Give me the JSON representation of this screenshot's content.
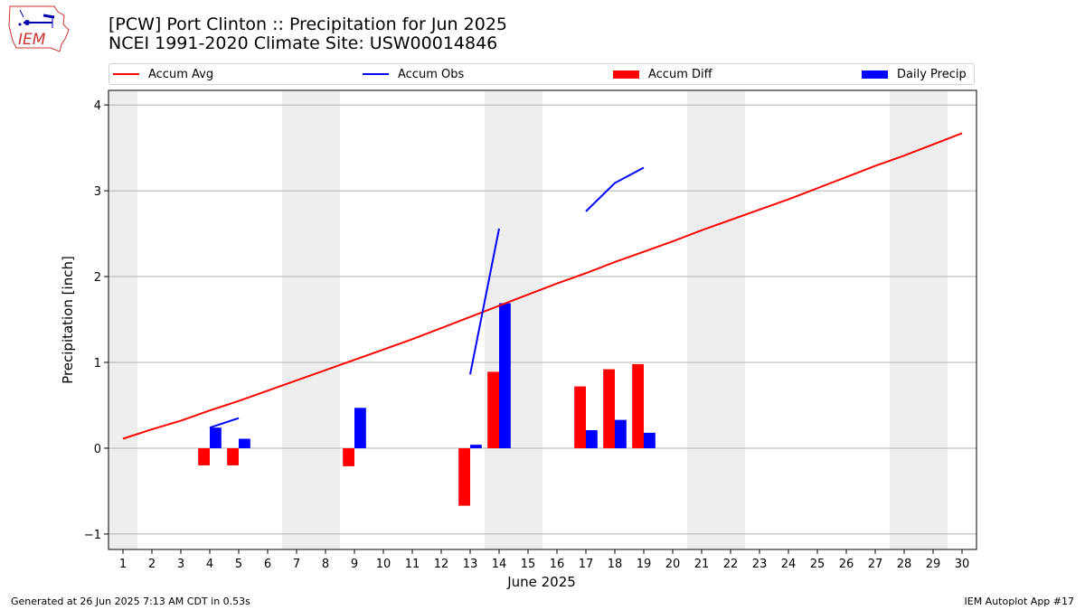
{
  "header": {
    "title_line1": "[PCW] Port Clinton :: Precipitation for Jun 2025",
    "title_line2": "NCEI 1991-2020 Climate Site: USW00014846",
    "logo_text": "IEM"
  },
  "footer": {
    "generated": "Generated at 26 Jun 2025 7:13 AM CDT in 0.53s",
    "app": "IEM Autoplot App #17"
  },
  "legend": [
    {
      "label": "Accum Avg",
      "kind": "line",
      "color": "#ff0000"
    },
    {
      "label": "Accum Obs",
      "kind": "line",
      "color": "#0000ff"
    },
    {
      "label": "Accum Diff",
      "kind": "patch",
      "color": "#ff0000"
    },
    {
      "label": "Daily Precip",
      "kind": "patch",
      "color": "#0000ff"
    }
  ],
  "chart_data": {
    "type": "bar",
    "title": "[PCW] Port Clinton :: Precipitation for Jun 2025",
    "subtitle": "NCEI 1991-2020 Climate Site: USW00014846",
    "xlabel": "June 2025",
    "ylabel": "Precipitation [inch]",
    "xlim": [
      0.5,
      30.5
    ],
    "ylim": [
      -1.18,
      4.17
    ],
    "yticks": [
      -1,
      0,
      1,
      2,
      3,
      4
    ],
    "ytick_labels": [
      "−1",
      "0",
      "1",
      "2",
      "3",
      "4"
    ],
    "categories": [
      "1",
      "2",
      "3",
      "4",
      "5",
      "6",
      "7",
      "8",
      "9",
      "10",
      "11",
      "12",
      "13",
      "14",
      "15",
      "16",
      "17",
      "18",
      "19",
      "20",
      "21",
      "22",
      "23",
      "24",
      "25",
      "26",
      "27",
      "28",
      "29",
      "30"
    ],
    "grid": "y",
    "legend_placement": "top",
    "weekend_shading": [
      [
        0.5,
        1.5
      ],
      [
        6.5,
        8.5
      ],
      [
        13.5,
        15.5
      ],
      [
        20.5,
        22.5
      ],
      [
        27.5,
        29.5
      ]
    ],
    "colors": {
      "avg": "#ff0000",
      "obs": "#0000ff",
      "diff": "#ff0000",
      "daily": "#0000ff",
      "shade": "#eeeeee"
    },
    "series": [
      {
        "name": "Accum Avg",
        "kind": "line",
        "x": [
          1,
          2,
          3,
          4,
          5,
          6,
          7,
          8,
          9,
          10,
          11,
          12,
          13,
          14,
          15,
          16,
          17,
          18,
          19,
          20,
          21,
          22,
          23,
          24,
          25,
          26,
          27,
          28,
          29,
          30
        ],
        "values": [
          0.11,
          0.22,
          0.32,
          0.44,
          0.55,
          0.67,
          0.79,
          0.91,
          1.03,
          1.15,
          1.27,
          1.4,
          1.53,
          1.66,
          1.79,
          1.92,
          2.04,
          2.17,
          2.29,
          2.41,
          2.54,
          2.66,
          2.78,
          2.9,
          3.03,
          3.16,
          3.29,
          3.41,
          3.54,
          3.67
        ]
      },
      {
        "name": "Accum Obs",
        "kind": "line",
        "segments": [
          {
            "x": [
              4,
              5
            ],
            "values": [
              0.24,
              0.35
            ]
          },
          {
            "x": [
              13,
              14
            ],
            "values": [
              0.86,
              2.56
            ]
          },
          {
            "x": [
              17,
              18,
              19
            ],
            "values": [
              2.76,
              3.09,
              3.27
            ]
          }
        ]
      },
      {
        "name": "Accum Diff",
        "kind": "bar",
        "x": [
          4,
          5,
          9,
          13,
          14,
          17,
          18,
          19
        ],
        "values": [
          -0.2,
          -0.2,
          -0.21,
          -0.67,
          0.89,
          0.72,
          0.92,
          0.98
        ]
      },
      {
        "name": "Daily Precip",
        "kind": "bar",
        "x": [
          4,
          5,
          9,
          13,
          14,
          17,
          18,
          19
        ],
        "values": [
          0.24,
          0.11,
          0.47,
          0.04,
          1.69,
          0.21,
          0.33,
          0.18
        ]
      }
    ]
  }
}
